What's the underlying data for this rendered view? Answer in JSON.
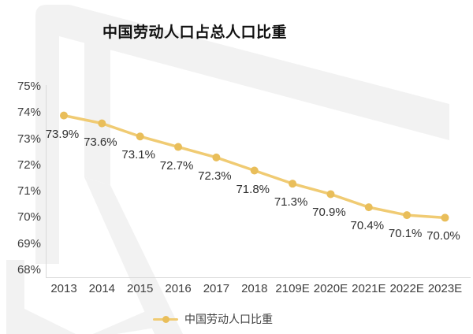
{
  "page": {
    "title": "中国劳动人口占总人口比重"
  },
  "legend": {
    "label": "中国劳动人口比重"
  },
  "colors": {
    "line": "#F0CB73",
    "marker": "#E9BE5A",
    "axis": "#D9D9D9",
    "tick_text": "#3F3F3F",
    "label_text": "#303030",
    "title_text": "#111111",
    "watermark": "#F2F2F2"
  },
  "chart_data": {
    "type": "line",
    "title": "中国劳动人口占总人口比重",
    "categories": [
      "2013",
      "2014",
      "2015",
      "2016",
      "2017",
      "2018",
      "2109E",
      "2020E",
      "2021E",
      "2022E",
      "2023E"
    ],
    "series": [
      {
        "name": "中国劳动人口比重",
        "values": [
          73.9,
          73.6,
          73.1,
          72.7,
          72.3,
          71.8,
          71.3,
          70.9,
          70.4,
          70.1,
          70.0
        ]
      }
    ],
    "data_labels": [
      "73.9%",
      "73.6%",
      "73.1%",
      "72.7%",
      "72.3%",
      "71.8%",
      "71.3%",
      "70.9%",
      "70.4%",
      "70.1%",
      "70.0%"
    ],
    "y_ticks": [
      "75%",
      "74%",
      "73%",
      "72%",
      "71%",
      "70%",
      "69%",
      "68%"
    ],
    "y_tick_values": [
      75,
      74,
      73,
      72,
      71,
      70,
      69,
      68
    ],
    "ylim": [
      68,
      75
    ],
    "xlabel": "",
    "ylabel": "",
    "grid": false,
    "legend_position": "bottom"
  }
}
